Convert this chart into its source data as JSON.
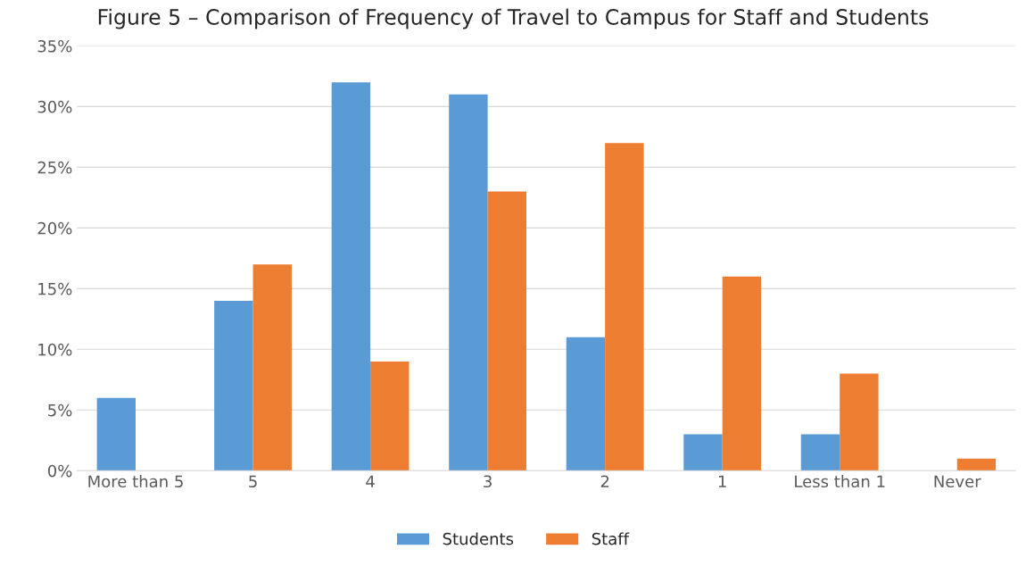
{
  "chart_data": {
    "type": "bar",
    "title": "Figure 5 – Comparison of Frequency of Travel to Campus for Staff and Students",
    "categories": [
      "More than 5",
      "5",
      "4",
      "3",
      "2",
      "1",
      "Less than 1",
      "Never"
    ],
    "series": [
      {
        "name": "Students",
        "color": "#5b9bd5",
        "values": [
          6,
          14,
          32,
          31,
          11,
          3,
          3,
          null
        ]
      },
      {
        "name": "Staff",
        "color": "#ed7d31",
        "values": [
          null,
          17,
          9,
          23,
          27,
          16,
          8,
          1
        ]
      }
    ],
    "ylim": [
      0,
      35
    ],
    "yticks": [
      {
        "value": 0,
        "label": "0%"
      },
      {
        "value": 5,
        "label": "5%"
      },
      {
        "value": 10,
        "label": "10%"
      },
      {
        "value": 15,
        "label": "15%"
      },
      {
        "value": 20,
        "label": "20%"
      },
      {
        "value": 25,
        "label": "25%"
      },
      {
        "value": 30,
        "label": "30%"
      },
      {
        "value": 35,
        "label": "35%"
      }
    ],
    "grid": "y",
    "legend": "bottom"
  }
}
